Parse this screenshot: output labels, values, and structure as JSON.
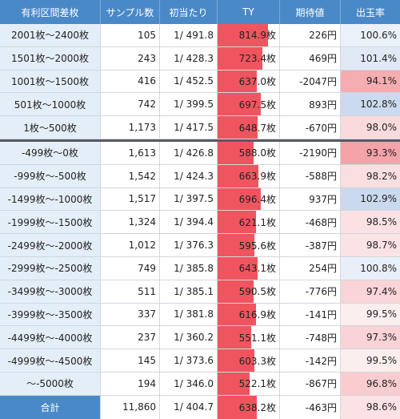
{
  "headers": [
    "有利区間差枚",
    "サンプル数",
    "初当たり",
    "TY",
    "期待値",
    "出玉率"
  ],
  "colors": {
    "header_bg": "#4a89c8",
    "label_bg": "#e4eef8",
    "ty_bar": "#f0555f",
    "rate_high": "#c9d8ee",
    "rate_low": "#f4a3a8",
    "divider": "#555b63"
  },
  "ty_bar_max": 1000,
  "rows": [
    {
      "label": "2001枚～2400枚",
      "samples": "105",
      "first_hit": "1/ 491.8",
      "ty": "814.9枚",
      "ty_value": 814.9,
      "ev": "226円",
      "rate": "100.6%",
      "rate_value": 100.6
    },
    {
      "label": "1501枚～2000枚",
      "samples": "243",
      "first_hit": "1/ 428.3",
      "ty": "723.4枚",
      "ty_value": 723.4,
      "ev": "469円",
      "rate": "101.4%",
      "rate_value": 101.4
    },
    {
      "label": "1001枚～1500枚",
      "samples": "416",
      "first_hit": "1/ 452.5",
      "ty": "637.0枚",
      "ty_value": 637.0,
      "ev": "-2047円",
      "rate": "94.1%",
      "rate_value": 94.1
    },
    {
      "label": "501枚～1000枚",
      "samples": "742",
      "first_hit": "1/ 399.5",
      "ty": "697.5枚",
      "ty_value": 697.5,
      "ev": "893円",
      "rate": "102.8%",
      "rate_value": 102.8
    },
    {
      "label": "1枚～500枚",
      "samples": "1,173",
      "first_hit": "1/ 417.5",
      "ty": "648.7枚",
      "ty_value": 648.7,
      "ev": "-670円",
      "rate": "98.0%",
      "rate_value": 98.0
    },
    {
      "label": "-499枚～0枚",
      "samples": "1,613",
      "first_hit": "1/ 426.8",
      "ty": "588.0枚",
      "ty_value": 588.0,
      "ev": "-2190円",
      "rate": "93.3%",
      "rate_value": 93.3
    },
    {
      "label": "-999枚～-500枚",
      "samples": "1,542",
      "first_hit": "1/ 424.3",
      "ty": "663.9枚",
      "ty_value": 663.9,
      "ev": "-588円",
      "rate": "98.2%",
      "rate_value": 98.2
    },
    {
      "label": "-1499枚～-1000枚",
      "samples": "1,517",
      "first_hit": "1/ 397.5",
      "ty": "696.4枚",
      "ty_value": 696.4,
      "ev": "937円",
      "rate": "102.9%",
      "rate_value": 102.9
    },
    {
      "label": "-1999枚～-1500枚",
      "samples": "1,324",
      "first_hit": "1/ 394.4",
      "ty": "621.1枚",
      "ty_value": 621.1,
      "ev": "-468円",
      "rate": "98.5%",
      "rate_value": 98.5
    },
    {
      "label": "-2499枚～-2000枚",
      "samples": "1,012",
      "first_hit": "1/ 376.3",
      "ty": "595.6枚",
      "ty_value": 595.6,
      "ev": "-387円",
      "rate": "98.7%",
      "rate_value": 98.7
    },
    {
      "label": "-2999枚～-2500枚",
      "samples": "749",
      "first_hit": "1/ 385.8",
      "ty": "643.1枚",
      "ty_value": 643.1,
      "ev": "254円",
      "rate": "100.8%",
      "rate_value": 100.8
    },
    {
      "label": "-3499枚～-3000枚",
      "samples": "511",
      "first_hit": "1/ 385.1",
      "ty": "590.5枚",
      "ty_value": 590.5,
      "ev": "-776円",
      "rate": "97.4%",
      "rate_value": 97.4
    },
    {
      "label": "-3999枚～-3500枚",
      "samples": "337",
      "first_hit": "1/ 381.8",
      "ty": "616.9枚",
      "ty_value": 616.9,
      "ev": "-141円",
      "rate": "99.5%",
      "rate_value": 99.5
    },
    {
      "label": "-4499枚～-4000枚",
      "samples": "237",
      "first_hit": "1/ 360.2",
      "ty": "551.1枚",
      "ty_value": 551.1,
      "ev": "-748円",
      "rate": "97.3%",
      "rate_value": 97.3
    },
    {
      "label": "-4999枚～-4500枚",
      "samples": "145",
      "first_hit": "1/ 373.6",
      "ty": "603.3枚",
      "ty_value": 603.3,
      "ev": "-142円",
      "rate": "99.5%",
      "rate_value": 99.5
    },
    {
      "label": "～-5000枚",
      "samples": "194",
      "first_hit": "1/ 346.0",
      "ty": "522.1枚",
      "ty_value": 522.1,
      "ev": "-867円",
      "rate": "96.8%",
      "rate_value": 96.8
    }
  ],
  "total": {
    "label": "合計",
    "samples": "11,860",
    "first_hit": "1/ 404.7",
    "ty": "638.2枚",
    "ty_value": 638.2,
    "ev": "-463円",
    "rate": "98.6%",
    "rate_value": 98.6
  }
}
